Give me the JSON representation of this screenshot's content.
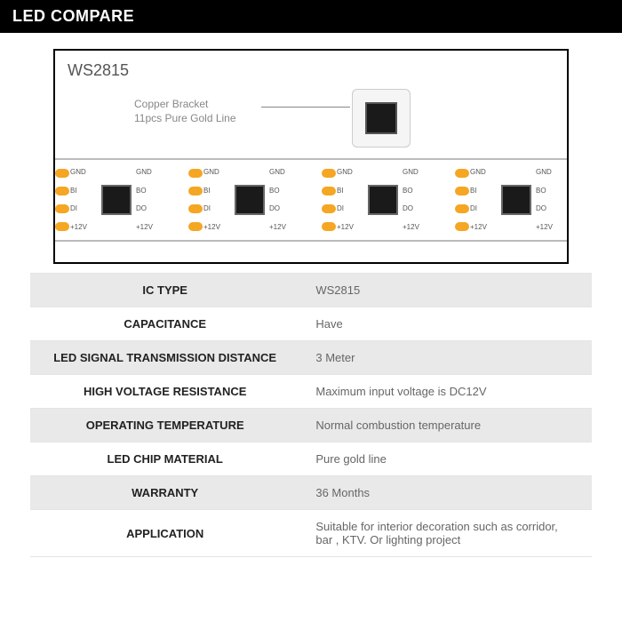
{
  "header": {
    "title": "LED COMPARE"
  },
  "diagram": {
    "model": "WS2815",
    "callout1": "Copper Bracket",
    "callout2": "11pcs Pure Gold Line",
    "pad_in": [
      "GND",
      "BI",
      "DI",
      "+12V"
    ],
    "pad_out": [
      "GND",
      "BO",
      "DO",
      "+12V"
    ]
  },
  "specs": [
    {
      "label": "IC TYPE",
      "value": "WS2815",
      "alt": true
    },
    {
      "label": "CAPACITANCE",
      "value": "Have",
      "alt": false
    },
    {
      "label": "LED SIGNAL TRANSMISSION DISTANCE",
      "value": "3 Meter",
      "alt": true
    },
    {
      "label": "HIGH VOLTAGE RESISTANCE",
      "value": "Maximum input voltage is DC12V",
      "alt": false
    },
    {
      "label": "OPERATING TEMPERATURE",
      "value": "Normal combustion temperature",
      "alt": true
    },
    {
      "label": "LED CHIP MATERIAL",
      "value": "Pure gold line",
      "alt": false
    },
    {
      "label": "WARRANTY",
      "value": "36 Months",
      "alt": true
    },
    {
      "label": "APPLICATION",
      "value": "Suitable for interior decoration such as corridor, bar , KTV. Or lighting project",
      "alt": false
    }
  ],
  "colors": {
    "header_bg": "#000000",
    "header_text": "#ffffff",
    "border": "#000000",
    "cut_mark": "#f5a623",
    "chip_body": "#1a1a1a",
    "row_alt_bg": "#e9e9e9",
    "label_text": "#222222",
    "value_text": "#666666"
  }
}
